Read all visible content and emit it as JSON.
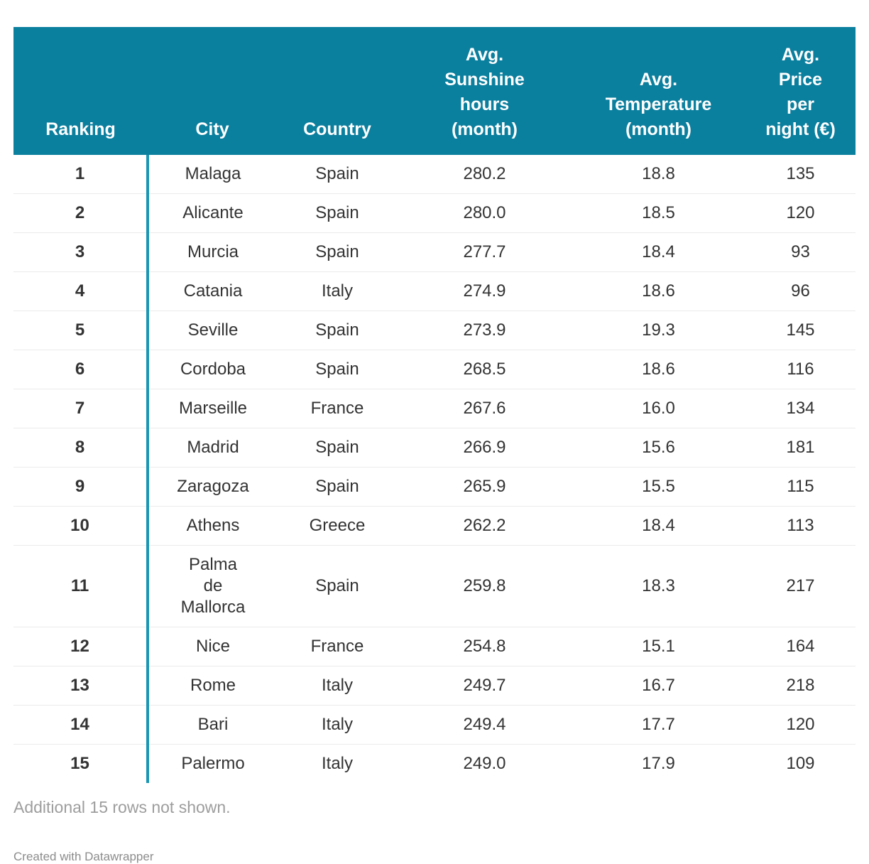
{
  "chart_data": {
    "type": "table",
    "columns": [
      {
        "key": "ranking",
        "label": "Ranking",
        "display": "Ranking"
      },
      {
        "key": "city",
        "label": "City",
        "display": "City"
      },
      {
        "key": "country",
        "label": "Country",
        "display": "Country"
      },
      {
        "key": "sunshine",
        "label": "Avg. Sunshine hours (month)",
        "display": "Avg.\nSunshine\nhours\n(month)"
      },
      {
        "key": "temperature",
        "label": "Avg. Temperature (month)",
        "display": "Avg.\nTemperature\n(month)"
      },
      {
        "key": "price",
        "label": "Avg. Price per night (€)",
        "display": "Avg.\nPrice\nper\nnight (€)"
      }
    ],
    "rows": [
      [
        "1",
        "Malaga",
        "Spain",
        "280.2",
        "18.8",
        "135"
      ],
      [
        "2",
        "Alicante",
        "Spain",
        "280.0",
        "18.5",
        "120"
      ],
      [
        "3",
        "Murcia",
        "Spain",
        "277.7",
        "18.4",
        "93"
      ],
      [
        "4",
        "Catania",
        "Italy",
        "274.9",
        "18.6",
        "96"
      ],
      [
        "5",
        "Seville",
        "Spain",
        "273.9",
        "19.3",
        "145"
      ],
      [
        "6",
        "Cordoba",
        "Spain",
        "268.5",
        "18.6",
        "116"
      ],
      [
        "7",
        "Marseille",
        "France",
        "267.6",
        "16.0",
        "134"
      ],
      [
        "8",
        "Madrid",
        "Spain",
        "266.9",
        "15.6",
        "181"
      ],
      [
        "9",
        "Zaragoza",
        "Spain",
        "265.9",
        "15.5",
        "115"
      ],
      [
        "10",
        "Athens",
        "Greece",
        "262.2",
        "18.4",
        "113"
      ],
      [
        "11",
        "Palma de Mallorca",
        "Spain",
        "259.8",
        "18.3",
        "217"
      ],
      [
        "12",
        "Nice",
        "France",
        "254.8",
        "15.1",
        "164"
      ],
      [
        "13",
        "Rome",
        "Italy",
        "249.7",
        "16.7",
        "218"
      ],
      [
        "14",
        "Bari",
        "Italy",
        "249.4",
        "17.7",
        "120"
      ],
      [
        "15",
        "Palermo",
        "Italy",
        "249.0",
        "17.9",
        "109"
      ]
    ],
    "layout_hints": {
      "header_alignment": "bottom",
      "cell_alignment": "center",
      "grid": "horizontal-row-separators",
      "divider_after_column": "ranking"
    }
  },
  "footer": {
    "note": "Additional 15 rows not shown.",
    "credit": "Created with Datawrapper"
  },
  "colors": {
    "header_bg": "#0b7f9e",
    "header_text": "#ffffff",
    "divider": "#1a96b3",
    "row_separator": "#ebebeb",
    "body_text": "#333333",
    "ranking_text": "#1a1a1a",
    "note_text": "#9d9d9d",
    "credit_text": "#8c8c8c"
  }
}
